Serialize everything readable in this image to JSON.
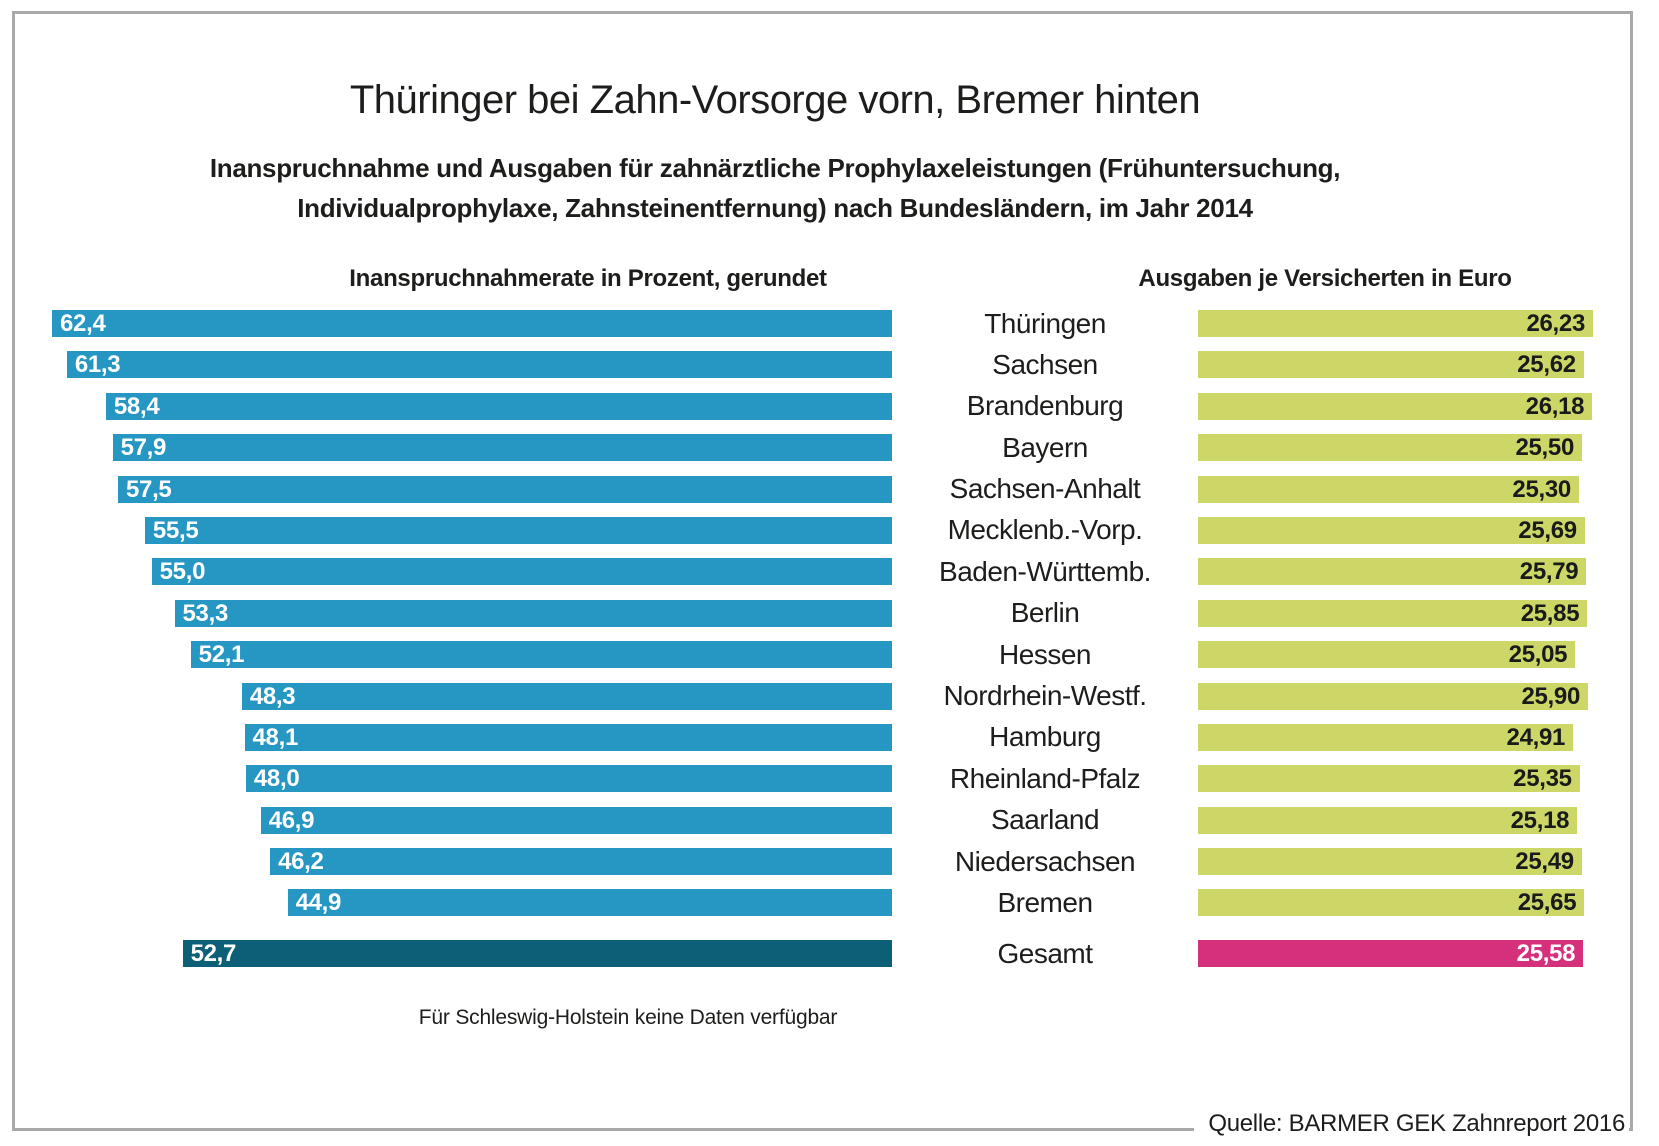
{
  "header": {
    "title": "Thüringer bei Zahn-Vorsorge vorn, Bremer hinten",
    "subtitle_line1": "Inanspruchnahme und Ausgaben für zahnärztliche Prophylaxeleistungen (Frühuntersuchung,",
    "subtitle_line2": "Individualprophylaxe, Zahnsteinentfernung) nach Bundesländern, im Jahr 2014"
  },
  "chart_data": {
    "type": "bar",
    "title": "Thüringer bei Zahn-Vorsorge vorn, Bremer hinten",
    "left_axis_label": "Inanspruchnahmerate in Prozent, gerundet",
    "right_axis_label": "Ausgaben je Versicherten in Euro",
    "layout_hint": "two mirrored horizontal bar series; left series right-aligned (blue), right series left-aligned (green); category labels centered between them; both series zero-based",
    "rows": [
      {
        "label": "Thüringen",
        "rate_percent": 62.4,
        "rate_label": "62,4",
        "euro": 26.23,
        "euro_label": "26,23"
      },
      {
        "label": "Sachsen",
        "rate_percent": 61.3,
        "rate_label": "61,3",
        "euro": 25.62,
        "euro_label": "25,62"
      },
      {
        "label": "Brandenburg",
        "rate_percent": 58.4,
        "rate_label": "58,4",
        "euro": 26.18,
        "euro_label": "26,18"
      },
      {
        "label": "Bayern",
        "rate_percent": 57.9,
        "rate_label": "57,9",
        "euro": 25.5,
        "euro_label": "25,50"
      },
      {
        "label": "Sachsen-Anhalt",
        "rate_percent": 57.5,
        "rate_label": "57,5",
        "euro": 25.3,
        "euro_label": "25,30"
      },
      {
        "label": "Mecklenb.-Vorp.",
        "rate_percent": 55.5,
        "rate_label": "55,5",
        "euro": 25.69,
        "euro_label": "25,69"
      },
      {
        "label": "Baden-Württemb.",
        "rate_percent": 55.0,
        "rate_label": "55,0",
        "euro": 25.79,
        "euro_label": "25,79"
      },
      {
        "label": "Berlin",
        "rate_percent": 53.3,
        "rate_label": "53,3",
        "euro": 25.85,
        "euro_label": "25,85"
      },
      {
        "label": "Hessen",
        "rate_percent": 52.1,
        "rate_label": "52,1",
        "euro": 25.05,
        "euro_label": "25,05"
      },
      {
        "label": "Nordrhein-Westf.",
        "rate_percent": 48.3,
        "rate_label": "48,3",
        "euro": 25.9,
        "euro_label": "25,90"
      },
      {
        "label": "Hamburg",
        "rate_percent": 48.1,
        "rate_label": "48,1",
        "euro": 24.91,
        "euro_label": "24,91"
      },
      {
        "label": "Rheinland-Pfalz",
        "rate_percent": 48.0,
        "rate_label": "48,0",
        "euro": 25.35,
        "euro_label": "25,35"
      },
      {
        "label": "Saarland",
        "rate_percent": 46.9,
        "rate_label": "46,9",
        "euro": 25.18,
        "euro_label": "25,18"
      },
      {
        "label": "Niedersachsen",
        "rate_percent": 46.2,
        "rate_label": "46,2",
        "euro": 25.49,
        "euro_label": "25,49"
      },
      {
        "label": "Bremen",
        "rate_percent": 44.9,
        "rate_label": "44,9",
        "euro": 25.65,
        "euro_label": "25,65"
      }
    ],
    "total_row": {
      "label": "Gesamt",
      "rate_percent": 52.7,
      "rate_label": "52,7",
      "euro": 25.58,
      "euro_label": "25,58"
    },
    "footnote": "Für Schleswig-Holstein keine Daten verfügbar",
    "source": "Quelle: BARMER GEK Zahnreport 2016",
    "colors": {
      "rate_bar": "#2697c3",
      "rate_bar_total": "#0d5f78",
      "euro_bar": "#ccd768",
      "euro_bar_total": "#d5307b",
      "frame_border": "#a9a9a9",
      "text": "#1d1d1b"
    }
  }
}
